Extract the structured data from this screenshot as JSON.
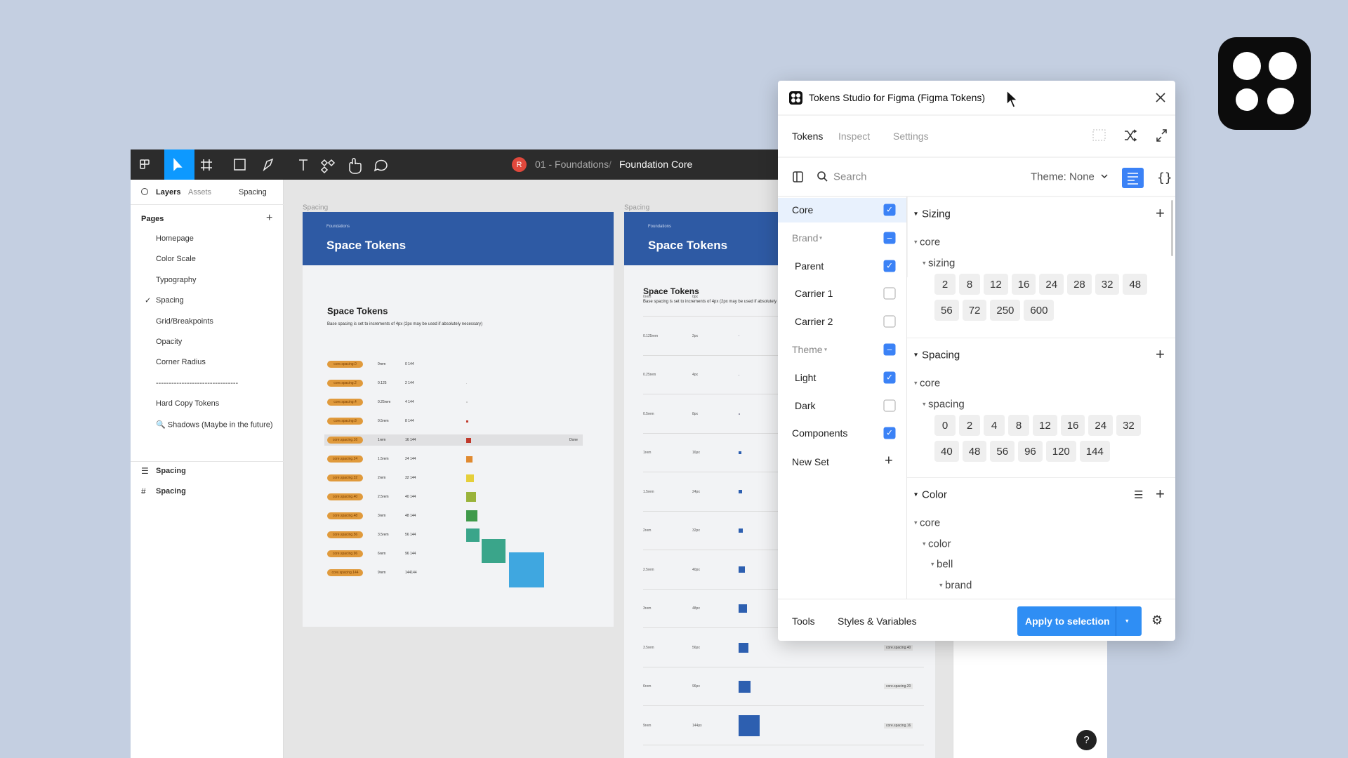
{
  "figma": {
    "breadcrumb": {
      "avatar": "R",
      "file": "01 - Foundations",
      "separator": "/",
      "page": "Foundation Core"
    },
    "left_panel": {
      "tabs": [
        "Layers",
        "Assets"
      ],
      "page_selector": "Spacing",
      "pages_title": "Pages",
      "pages": [
        "Homepage",
        "Color Scale",
        "Typography",
        "Spacing",
        "Grid/Breakpoints",
        "Opacity",
        "Corner Radius",
        "--------------------------------",
        "Hard Copy Tokens",
        "🔍 Shadows (Maybe in the future)"
      ],
      "selected_page": 3,
      "layers": [
        "Spacing",
        "Spacing"
      ]
    },
    "frames": [
      {
        "label": "Spacing",
        "eyebrow": "Foundations",
        "title": "Space Tokens",
        "heading": "Space Tokens",
        "description": "Base spacing is set to increments of 4px (2px may be used if absolutely necessary)",
        "rows": [
          [
            "core.spacing.0",
            "0rem",
            "0 144"
          ],
          [
            "core.spacing.2",
            "0.125",
            "2 144"
          ],
          [
            "core.spacing.4",
            "0.25rem",
            "4 144"
          ],
          [
            "core.spacing.8",
            "0.5rem",
            "8 144"
          ],
          [
            "core.spacing.16",
            "1rem",
            "16 144",
            "Done"
          ],
          [
            "core.spacing.24",
            "1.5rem",
            "24 144"
          ],
          [
            "core.spacing.32",
            "2rem",
            "32 144"
          ],
          [
            "core.spacing.40",
            "2.5rem",
            "40 144"
          ],
          [
            "core.spacing.48",
            "3rem",
            "48 144"
          ],
          [
            "core.spacing.56",
            "3.5rem",
            "56 144"
          ],
          [
            "core.spacing.96",
            "6rem",
            "96 144"
          ],
          [
            "core.spacing.144",
            "9rem",
            "144144"
          ]
        ]
      },
      {
        "label": "Spacing",
        "eyebrow": "Foundations",
        "title": "Space Tokens",
        "heading": "Space Tokens",
        "description": "Base spacing is set to increments of 4px (2px may be used if absolutely necessary)",
        "rows": [
          [
            "0rem",
            "0px"
          ],
          [
            "0.125rem",
            "2px"
          ],
          [
            "0.25rem",
            "4px"
          ],
          [
            "0.5rem",
            "8px"
          ],
          [
            "1rem",
            "16px"
          ],
          [
            "1.5rem",
            "24px"
          ],
          [
            "2rem",
            "32px"
          ],
          [
            "2.5rem",
            "40px"
          ],
          [
            "3rem",
            "48px"
          ],
          [
            "3.5rem",
            "56px",
            "core.spacing.40"
          ],
          [
            "6rem",
            "96px",
            "core.spacing.20"
          ],
          [
            "9rem",
            "144px",
            "core.spacing.16"
          ]
        ]
      }
    ],
    "help": "?"
  },
  "plugin": {
    "title": "Tokens Studio for Figma (Figma Tokens)",
    "tabs": [
      "Tokens",
      "Inspect",
      "Settings"
    ],
    "search_placeholder": "Search",
    "theme_label": "Theme: None",
    "sets": [
      {
        "name": "Core",
        "state": "checked",
        "level": 0
      },
      {
        "name": "Brand",
        "state": "indeterminate",
        "level": 0
      },
      {
        "name": "Parent",
        "state": "checked",
        "level": 1
      },
      {
        "name": "Carrier 1",
        "state": "unchecked",
        "level": 1
      },
      {
        "name": "Carrier 2",
        "state": "unchecked",
        "level": 1
      },
      {
        "name": "Theme",
        "state": "indeterminate",
        "level": 0
      },
      {
        "name": "Light",
        "state": "checked",
        "level": 1
      },
      {
        "name": "Dark",
        "state": "unchecked",
        "level": 1
      },
      {
        "name": "Components",
        "state": "checked",
        "level": 0
      }
    ],
    "new_set": "New Set",
    "groups": [
      {
        "title": "Sizing",
        "tree": [
          "core",
          "sizing"
        ],
        "tokens": [
          2,
          8,
          12,
          16,
          24,
          28,
          32,
          48,
          56,
          72,
          250,
          600
        ]
      },
      {
        "title": "Spacing",
        "tree": [
          "core",
          "spacing"
        ],
        "tokens": [
          0,
          2,
          4,
          8,
          12,
          16,
          24,
          32,
          40,
          48,
          56,
          96,
          120,
          144
        ]
      },
      {
        "title": "Color",
        "tree": [
          "core",
          "color",
          "bell",
          "brand"
        ]
      }
    ],
    "footer": {
      "tools": "Tools",
      "styles": "Styles & Variables",
      "apply": "Apply to selection"
    }
  }
}
